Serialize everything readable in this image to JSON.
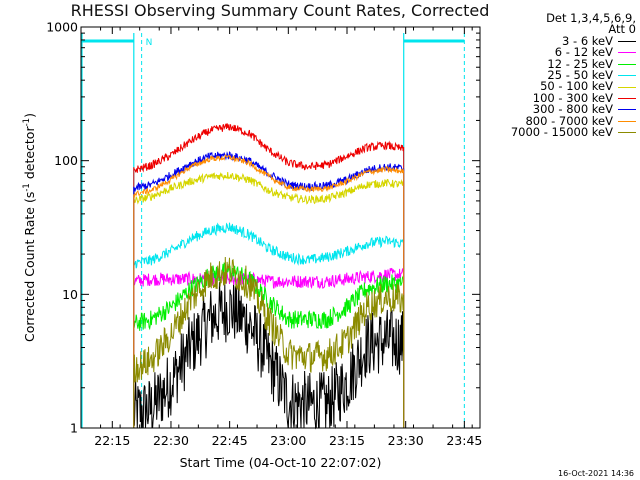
{
  "page": {
    "title": "RHESSI Observing Summary Count Rates, Corrected",
    "timestamp": "16-Oct-2021 14:36"
  },
  "legend": {
    "header_line1": "Det 1,3,4,5,6,9,",
    "header_line2": "Att 0",
    "entries": [
      {
        "label": "3 - 6 keV",
        "color": "#000000"
      },
      {
        "label": "6 - 12 keV",
        "color": "#ff00ff"
      },
      {
        "label": "12 - 25 keV",
        "color": "#00ee00"
      },
      {
        "label": "25 - 50 keV",
        "color": "#00e5ee"
      },
      {
        "label": "50 - 100 keV",
        "color": "#d6d600"
      },
      {
        "label": "100 - 300 keV",
        "color": "#ee0000"
      },
      {
        "label": "300 - 800 keV",
        "color": "#0000ee"
      },
      {
        "label": "800 - 7000 keV",
        "color": "#ff8c00"
      },
      {
        "label": "7000 - 15000 keV",
        "color": "#8b8b00"
      }
    ]
  },
  "chart_data": {
    "type": "line",
    "title": "RHESSI Observing Summary Count Rates, Corrected",
    "xlabel": "Start Time (04-Oct-10 22:07:02)",
    "ylabel_main": "Corrected Count Rate (s",
    "ylabel_sup1": "-1",
    "ylabel_mid": " detector",
    "ylabel_sup2": "-1",
    "ylabel_end": ")",
    "y_scale": "log",
    "ylim": [
      1,
      1000
    ],
    "xlim_minutes": [
      0,
      102
    ],
    "x_ticks": [
      {
        "m": 8,
        "label": "22:15"
      },
      {
        "m": 23,
        "label": "22:30"
      },
      {
        "m": 38,
        "label": "22:45"
      },
      {
        "m": 53,
        "label": "23:00"
      },
      {
        "m": 68,
        "label": "23:15"
      },
      {
        "m": 83,
        "label": "23:30"
      },
      {
        "m": 98,
        "label": "23:45"
      }
    ],
    "y_ticks": [
      {
        "v": 1,
        "label": "1"
      },
      {
        "v": 10,
        "label": "10"
      },
      {
        "v": 100,
        "label": "100"
      },
      {
        "v": 1000,
        "label": "1000"
      }
    ],
    "data_span_minutes": [
      13.5,
      82.5
    ],
    "x_samples_minutes": [
      13.5,
      18,
      23,
      28,
      33,
      38,
      43,
      48,
      53,
      58,
      63,
      68,
      73,
      78,
      82.5
    ],
    "series": [
      {
        "name": "3 - 6 keV",
        "color": "#000000",
        "noise": 0.25,
        "values": [
          1.3,
          1.4,
          2.2,
          4.0,
          6.5,
          8.0,
          6.0,
          3.2,
          1.6,
          1.5,
          1.5,
          2.2,
          4.2,
          4.5,
          4.4
        ]
      },
      {
        "name": "6 - 12 keV",
        "color": "#ff00ff",
        "noise": 0.05,
        "values": [
          12.5,
          13,
          13,
          13,
          13,
          13,
          13,
          12.5,
          12.5,
          12.5,
          12.5,
          13,
          13.5,
          14,
          14
        ]
      },
      {
        "name": "12 - 25 keV",
        "color": "#00ee00",
        "noise": 0.07,
        "values": [
          6,
          6.5,
          8,
          11,
          14,
          15,
          13,
          9,
          6.5,
          6.5,
          6.5,
          8,
          11,
          12,
          12
        ]
      },
      {
        "name": "25 - 50 keV",
        "color": "#00e5ee",
        "noise": 0.04,
        "values": [
          17,
          18,
          21,
          26,
          30,
          32,
          28,
          22,
          19,
          18,
          19,
          21,
          24,
          25,
          24
        ]
      },
      {
        "name": "50 - 100 keV",
        "color": "#d6d600",
        "noise": 0.03,
        "values": [
          50,
          54,
          62,
          70,
          76,
          78,
          72,
          60,
          53,
          51,
          52,
          58,
          66,
          68,
          66
        ]
      },
      {
        "name": "100 - 300 keV",
        "color": "#ee0000",
        "noise": 0.03,
        "values": [
          85,
          92,
          110,
          140,
          168,
          180,
          160,
          120,
          96,
          90,
          93,
          108,
          125,
          130,
          122
        ]
      },
      {
        "name": "300 - 800 keV",
        "color": "#0000ee",
        "noise": 0.03,
        "values": [
          62,
          66,
          78,
          95,
          108,
          110,
          100,
          80,
          66,
          64,
          65,
          72,
          85,
          90,
          87
        ]
      },
      {
        "name": "800 - 7000 keV",
        "color": "#ff8c00",
        "noise": 0.02,
        "values": [
          56,
          60,
          72,
          90,
          103,
          106,
          96,
          76,
          63,
          61,
          62,
          70,
          82,
          86,
          83
        ]
      },
      {
        "name": "7000 - 15000 keV",
        "color": "#8b8b00",
        "noise": 0.12,
        "values": [
          2.8,
          3.2,
          5.0,
          9.0,
          13.5,
          15,
          12,
          6.5,
          3.6,
          3.4,
          3.5,
          4.5,
          8.0,
          9.5,
          9.0
        ]
      }
    ],
    "flags": {
      "saa_intervals_minutes": [
        [
          0,
          13.5
        ],
        [
          82.5,
          98
        ]
      ],
      "saa_label": "N",
      "night_markers_minutes": [
        13.5,
        82.5
      ],
      "dashed_markers_minutes": [
        15.5,
        98
      ]
    }
  }
}
